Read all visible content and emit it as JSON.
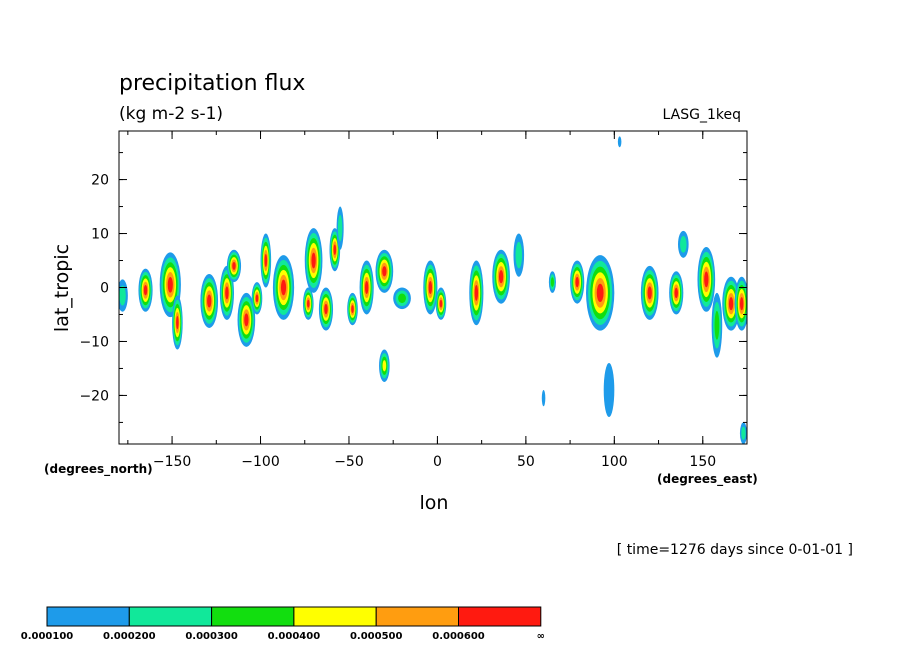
{
  "chart_data": {
    "type": "heatmap",
    "title": "precipitation flux",
    "subtitle": "(kg m-2 s-1)",
    "run_label": "LASG_1keq",
    "xlabel": "lon",
    "ylabel": "lat_tropic",
    "x_unit": "(degrees_north)",
    "x_unit2": "(degrees_east)",
    "time_note": "[ time=1276 days since 0-01-01 ]",
    "xlim": [
      -180,
      175
    ],
    "ylim": [
      -29,
      29
    ],
    "xticks": [
      -150,
      -100,
      -50,
      0,
      50,
      100,
      150
    ],
    "xtick_labels": [
      "−150",
      "−100",
      "−50",
      "0",
      "50",
      "100",
      "150"
    ],
    "yticks": [
      20,
      10,
      0,
      -10,
      -20
    ],
    "ytick_labels": [
      "20",
      "10",
      "0",
      "−10",
      "−20"
    ],
    "grid": false,
    "colorbar": {
      "levels": [
        "0.000100",
        "0.000200",
        "0.000300",
        "0.000400",
        "0.000500",
        "0.000600",
        "∞"
      ],
      "colors": [
        "#1e9bea",
        "#11e89a",
        "#12de0f",
        "#ffff00",
        "#ff9d10",
        "#ff1a10"
      ]
    },
    "features": [
      {
        "lon": -178,
        "lat": -1.5,
        "lon_radius": 3,
        "lat_radius": 3,
        "max_level": 2
      },
      {
        "lon": -165,
        "lat": -0.5,
        "lon_radius": 4,
        "lat_radius": 4,
        "max_level": 6
      },
      {
        "lon": -151,
        "lat": 0.5,
        "lon_radius": 6,
        "lat_radius": 6,
        "max_level": 6
      },
      {
        "lon": -147,
        "lat": -6.5,
        "lon_radius": 3,
        "lat_radius": 5,
        "max_level": 6
      },
      {
        "lon": -129,
        "lat": -2.5,
        "lon_radius": 5,
        "lat_radius": 5,
        "max_level": 6
      },
      {
        "lon": -119,
        "lat": -1,
        "lon_radius": 4,
        "lat_radius": 5,
        "max_level": 6
      },
      {
        "lon": -115,
        "lat": 4,
        "lon_radius": 4,
        "lat_radius": 3,
        "max_level": 6
      },
      {
        "lon": -108,
        "lat": -6,
        "lon_radius": 5,
        "lat_radius": 5,
        "max_level": 6
      },
      {
        "lon": -102,
        "lat": -2,
        "lon_radius": 3,
        "lat_radius": 3,
        "max_level": 6
      },
      {
        "lon": -97,
        "lat": 5,
        "lon_radius": 3,
        "lat_radius": 5,
        "max_level": 6
      },
      {
        "lon": -87,
        "lat": 0,
        "lon_radius": 6,
        "lat_radius": 6,
        "max_level": 6
      },
      {
        "lon": -70,
        "lat": 5,
        "lon_radius": 5,
        "lat_radius": 6,
        "max_level": 6
      },
      {
        "lon": -73,
        "lat": -3,
        "lon_radius": 3,
        "lat_radius": 3,
        "max_level": 6
      },
      {
        "lon": -63,
        "lat": -4,
        "lon_radius": 4,
        "lat_radius": 4,
        "max_level": 6
      },
      {
        "lon": -58,
        "lat": 7,
        "lon_radius": 3,
        "lat_radius": 4,
        "max_level": 6
      },
      {
        "lon": -55,
        "lat": 11,
        "lon_radius": 2,
        "lat_radius": 4,
        "max_level": 2
      },
      {
        "lon": -48,
        "lat": -4,
        "lon_radius": 3,
        "lat_radius": 3,
        "max_level": 6
      },
      {
        "lon": -40,
        "lat": 0,
        "lon_radius": 4,
        "lat_radius": 5,
        "max_level": 6
      },
      {
        "lon": -30,
        "lat": 3,
        "lon_radius": 5,
        "lat_radius": 4,
        "max_level": 6
      },
      {
        "lon": -30,
        "lat": -14.5,
        "lon_radius": 3,
        "lat_radius": 3,
        "max_level": 4
      },
      {
        "lon": -20,
        "lat": -2,
        "lon_radius": 5,
        "lat_radius": 2,
        "max_level": 3
      },
      {
        "lon": -4,
        "lat": 0,
        "lon_radius": 4,
        "lat_radius": 5,
        "max_level": 6
      },
      {
        "lon": 2,
        "lat": -3,
        "lon_radius": 3,
        "lat_radius": 3,
        "max_level": 6
      },
      {
        "lon": 22,
        "lat": -1,
        "lon_radius": 4,
        "lat_radius": 6,
        "max_level": 6
      },
      {
        "lon": 36,
        "lat": 2,
        "lon_radius": 5,
        "lat_radius": 5,
        "max_level": 6
      },
      {
        "lon": 46,
        "lat": 6,
        "lon_radius": 3,
        "lat_radius": 4,
        "max_level": 2
      },
      {
        "lon": 65,
        "lat": 1,
        "lon_radius": 2,
        "lat_radius": 2,
        "max_level": 3
      },
      {
        "lon": 79,
        "lat": 1,
        "lon_radius": 4,
        "lat_radius": 4,
        "max_level": 6
      },
      {
        "lon": 92,
        "lat": -1,
        "lon_radius": 8,
        "lat_radius": 7,
        "max_level": 6
      },
      {
        "lon": 97,
        "lat": -19,
        "lon_radius": 3,
        "lat_radius": 5,
        "max_level": 1
      },
      {
        "lon": 60,
        "lat": -20.5,
        "lon_radius": 1,
        "lat_radius": 1.5,
        "max_level": 1
      },
      {
        "lon": 120,
        "lat": -1,
        "lon_radius": 5,
        "lat_radius": 5,
        "max_level": 6
      },
      {
        "lon": 135,
        "lat": -1,
        "lon_radius": 4,
        "lat_radius": 4,
        "max_level": 6
      },
      {
        "lon": 139,
        "lat": 8,
        "lon_radius": 3,
        "lat_radius": 2.5,
        "max_level": 2
      },
      {
        "lon": 152,
        "lat": 1.5,
        "lon_radius": 5,
        "lat_radius": 6,
        "max_level": 6
      },
      {
        "lon": 158,
        "lat": -7,
        "lon_radius": 3,
        "lat_radius": 6,
        "max_level": 3
      },
      {
        "lon": 166,
        "lat": -3,
        "lon_radius": 5,
        "lat_radius": 5,
        "max_level": 6
      },
      {
        "lon": 172,
        "lat": -3,
        "lon_radius": 4,
        "lat_radius": 5,
        "max_level": 6
      },
      {
        "lon": 173,
        "lat": -27,
        "lon_radius": 2,
        "lat_radius": 2,
        "max_level": 2
      },
      {
        "lon": 103,
        "lat": 27,
        "lon_radius": 1,
        "lat_radius": 1,
        "max_level": 1
      }
    ]
  }
}
